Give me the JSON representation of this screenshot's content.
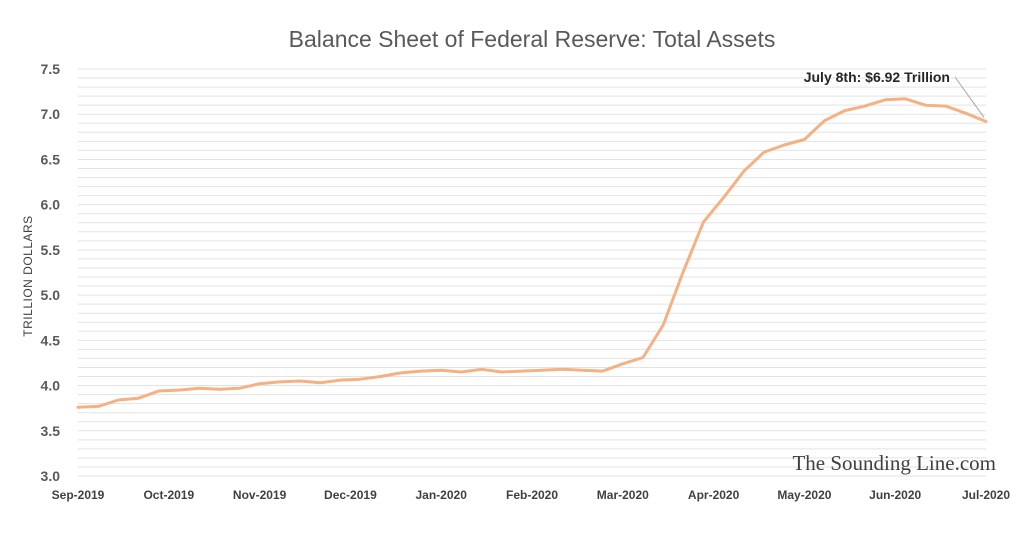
{
  "chart_data": {
    "type": "line",
    "title": "Balance Sheet of Federal Reserve: Total Assets",
    "ylabel": "TRILLION DOLLARS",
    "xlabel": "",
    "ylim": [
      3.0,
      7.5
    ],
    "y_ticks": [
      "3.0",
      "3.5",
      "4.0",
      "4.5",
      "5.0",
      "5.5",
      "6.0",
      "6.5",
      "7.0",
      "7.5"
    ],
    "x_ticks": [
      "Sep-2019",
      "Oct-2019",
      "Nov-2019",
      "Dec-2019",
      "Jan-2020",
      "Feb-2020",
      "Mar-2020",
      "Apr-2020",
      "May-2020",
      "Jun-2020",
      "Jul-2020"
    ],
    "grid": true,
    "line_color": "#f4b183",
    "series": [
      {
        "values": [
          3.76,
          3.77,
          3.84,
          3.86,
          3.94,
          3.95,
          3.97,
          3.96,
          3.97,
          4.02,
          4.04,
          4.05,
          4.03,
          4.06,
          4.07,
          4.1,
          4.14,
          4.16,
          4.17,
          4.15,
          4.18,
          4.15,
          4.16,
          4.17,
          4.18,
          4.17,
          4.16,
          4.24,
          4.31,
          4.67,
          5.26,
          5.81,
          6.08,
          6.37,
          6.58,
          6.66,
          6.72,
          6.93,
          7.04,
          7.09,
          7.16,
          7.17,
          7.1,
          7.09,
          7.01,
          6.92
        ]
      }
    ],
    "annotation": "July 8th: $6.92 Trillion",
    "watermark": "The Sounding Line.com"
  }
}
